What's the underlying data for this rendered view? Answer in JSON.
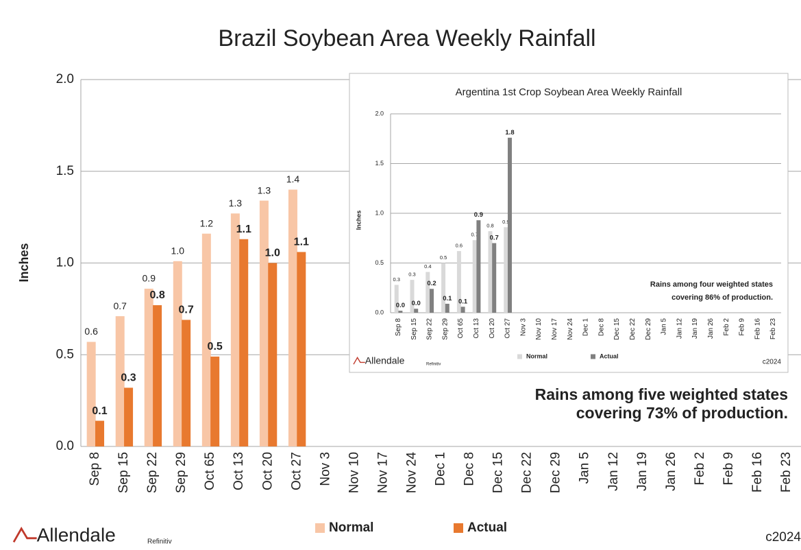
{
  "chart_data": [
    {
      "type": "bar",
      "title": "Brazil Soybean Area Weekly Rainfall",
      "ylabel": "Inches",
      "categories": [
        "Sep 8",
        "Sep 15",
        "Sep 22",
        "Sep 29",
        "Oct 65",
        "Oct 13",
        "Oct 20",
        "Oct 27",
        "Nov 3",
        "Nov 10",
        "Nov 17",
        "Nov 24",
        "Dec 1",
        "Dec 8",
        "Dec 15",
        "Dec 22",
        "Dec 29",
        "Jan 5",
        "Jan 12",
        "Jan 19",
        "Jan 26",
        "Feb 2",
        "Feb 9",
        "Feb 16",
        "Feb 23"
      ],
      "series": [
        {
          "name": "Normal",
          "color": "#f8c6a6",
          "values": [
            0.57,
            0.71,
            0.86,
            1.01,
            1.16,
            1.27,
            1.34,
            1.4,
            null,
            null,
            null,
            null,
            null,
            null,
            null,
            null,
            null,
            null,
            null,
            null,
            null,
            null,
            null,
            null,
            null
          ],
          "value_labels": [
            "0.6",
            "0.7",
            "0.9",
            "1.0",
            "1.2",
            "1.3",
            "1.3",
            "1.4",
            null,
            null,
            null,
            null,
            null,
            null,
            null,
            null,
            null,
            null,
            null,
            null,
            null,
            null,
            null,
            null,
            null
          ]
        },
        {
          "name": "Actual",
          "color": "#e8792f",
          "values": [
            0.14,
            0.32,
            0.77,
            0.69,
            0.49,
            1.13,
            1.0,
            1.06,
            null,
            null,
            null,
            null,
            null,
            null,
            null,
            null,
            null,
            null,
            null,
            null,
            null,
            null,
            null,
            null,
            null
          ],
          "value_labels": [
            "0.1",
            "0.3",
            "0.8",
            "0.7",
            "0.5",
            "1.1",
            "1.0",
            "1.1",
            null,
            null,
            null,
            null,
            null,
            null,
            null,
            null,
            null,
            null,
            null,
            null,
            null,
            null,
            null,
            null,
            null
          ]
        }
      ],
      "ylim": [
        0,
        2
      ],
      "yticks": [
        {
          "value": 0,
          "label": "0.0"
        },
        {
          "value": 0.5,
          "label": "0.5"
        },
        {
          "value": 1,
          "label": "1.0"
        },
        {
          "value": 1.5,
          "label": "1.5"
        },
        {
          "value": 2,
          "label": "2.0"
        }
      ],
      "grid": true,
      "annotation": [
        "Rains among five weighted states",
        "covering 73% of production."
      ],
      "logo": "Allendale",
      "source": "Refinitiv",
      "copyright": "c2024"
    },
    {
      "type": "bar",
      "title": "Argentina 1st Crop Soybean Area Weekly Rainfall",
      "ylabel": "Inches",
      "categories": [
        "Sep 8",
        "Sep 15",
        "Sep 22",
        "Sep 29",
        "Oct 65",
        "Oct 13",
        "Oct 20",
        "Oct 27",
        "Nov 3",
        "Nov 10",
        "Nov 17",
        "Nov 24",
        "Dec 1",
        "Dec 8",
        "Dec 15",
        "Dec 22",
        "Dec 29",
        "Jan 5",
        "Jan 12",
        "Jan 19",
        "Jan 26",
        "Feb 2",
        "Feb 9",
        "Feb 16",
        "Feb 23"
      ],
      "series": [
        {
          "name": "Normal",
          "color": "#d9d9d9",
          "values": [
            0.28,
            0.33,
            0.41,
            0.5,
            0.62,
            0.73,
            0.82,
            0.86,
            null,
            null,
            null,
            null,
            null,
            null,
            null,
            null,
            null,
            null,
            null,
            null,
            null,
            null,
            null,
            null,
            null
          ],
          "value_labels": [
            "0.3",
            "0.3",
            "0.4",
            "0.5",
            "0.6",
            "0.7",
            "0.8",
            "0.9",
            null,
            null,
            null,
            null,
            null,
            null,
            null,
            null,
            null,
            null,
            null,
            null,
            null,
            null,
            null,
            null,
            null
          ]
        },
        {
          "name": "Actual",
          "color": "#808080",
          "values": [
            0.02,
            0.04,
            0.24,
            0.09,
            0.06,
            0.93,
            0.7,
            1.76,
            null,
            null,
            null,
            null,
            null,
            null,
            null,
            null,
            null,
            null,
            null,
            null,
            null,
            null,
            null,
            null,
            null
          ],
          "value_labels": [
            "0.0",
            "0.0",
            "0.2",
            "0.1",
            "0.1",
            "0.9",
            "0.7",
            "1.8",
            null,
            null,
            null,
            null,
            null,
            null,
            null,
            null,
            null,
            null,
            null,
            null,
            null,
            null,
            null,
            null,
            null
          ]
        }
      ],
      "ylim": [
        0,
        2
      ],
      "yticks": [
        {
          "value": 0,
          "label": "0.0"
        },
        {
          "value": 0.5,
          "label": "0.5"
        },
        {
          "value": 1,
          "label": "1.0"
        },
        {
          "value": 1.5,
          "label": "1.5"
        },
        {
          "value": 2,
          "label": "2.0"
        }
      ],
      "grid": true,
      "annotation": [
        "Rains among four weighted states",
        "covering 86% of production."
      ],
      "logo": "Allendale",
      "source": "Refinitiv",
      "copyright": "c2024"
    }
  ]
}
